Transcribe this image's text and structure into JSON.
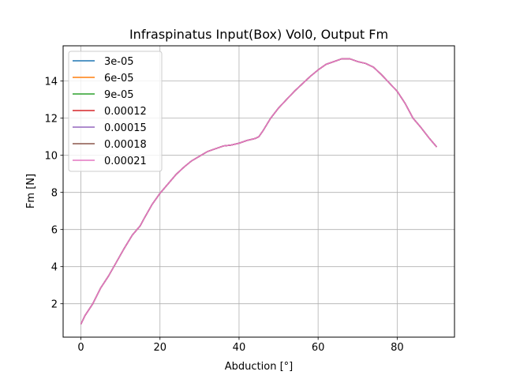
{
  "chart_data": {
    "type": "line",
    "title": "Infraspinatus Input(Box) Vol0, Output Fm",
    "xlabel": "Abduction [°]",
    "ylabel": "Fm [N]",
    "xlim": [
      -4.5,
      94.5
    ],
    "ylim": [
      0.2,
      15.9
    ],
    "xticks": [
      0,
      20,
      40,
      60,
      80
    ],
    "yticks": [
      2,
      4,
      6,
      8,
      10,
      12,
      14
    ],
    "grid": true,
    "legend_position": "upper-left",
    "x": [
      0,
      1,
      3,
      5,
      7,
      9,
      11,
      13,
      15,
      16,
      18,
      20,
      22,
      24,
      26,
      28,
      30,
      32,
      34,
      36,
      38,
      40,
      42,
      44,
      45,
      46,
      48,
      50,
      52,
      54,
      56,
      58,
      60,
      62,
      64,
      66,
      68,
      70,
      72,
      74,
      76,
      78,
      80,
      82,
      84,
      86,
      88,
      90
    ],
    "series": [
      {
        "name": "3e-05",
        "color": "#1f77b4",
        "values": [
          0.9,
          1.35,
          2.0,
          2.85,
          3.5,
          4.25,
          5.0,
          5.7,
          6.2,
          6.6,
          7.35,
          7.95,
          8.45,
          8.95,
          9.35,
          9.7,
          9.95,
          10.2,
          10.35,
          10.5,
          10.55,
          10.65,
          10.8,
          10.9,
          11.0,
          11.3,
          12.0,
          12.55,
          13.0,
          13.45,
          13.85,
          14.25,
          14.6,
          14.9,
          15.05,
          15.2,
          15.2,
          15.05,
          14.95,
          14.75,
          14.35,
          13.9,
          13.45,
          12.8,
          12.0,
          11.5,
          10.95,
          10.45
        ]
      },
      {
        "name": "6e-05",
        "color": "#ff7f0e",
        "values": [
          0.9,
          1.35,
          2.0,
          2.85,
          3.5,
          4.25,
          5.0,
          5.7,
          6.2,
          6.6,
          7.35,
          7.95,
          8.45,
          8.95,
          9.35,
          9.7,
          9.95,
          10.2,
          10.35,
          10.5,
          10.55,
          10.65,
          10.8,
          10.9,
          11.0,
          11.3,
          12.0,
          12.55,
          13.0,
          13.45,
          13.85,
          14.25,
          14.6,
          14.9,
          15.05,
          15.2,
          15.2,
          15.05,
          14.95,
          14.75,
          14.35,
          13.9,
          13.45,
          12.8,
          12.0,
          11.5,
          10.95,
          10.45
        ]
      },
      {
        "name": "9e-05",
        "color": "#2ca02c",
        "values": [
          0.9,
          1.35,
          2.0,
          2.85,
          3.5,
          4.25,
          5.0,
          5.7,
          6.2,
          6.6,
          7.35,
          7.95,
          8.45,
          8.95,
          9.35,
          9.7,
          9.95,
          10.2,
          10.35,
          10.5,
          10.55,
          10.65,
          10.8,
          10.9,
          11.0,
          11.3,
          12.0,
          12.55,
          13.0,
          13.45,
          13.85,
          14.25,
          14.6,
          14.9,
          15.05,
          15.2,
          15.2,
          15.05,
          14.95,
          14.75,
          14.35,
          13.9,
          13.45,
          12.8,
          12.0,
          11.5,
          10.95,
          10.45
        ]
      },
      {
        "name": "0.00012",
        "color": "#d62728",
        "values": [
          0.9,
          1.35,
          2.0,
          2.85,
          3.5,
          4.25,
          5.0,
          5.7,
          6.2,
          6.6,
          7.35,
          7.95,
          8.45,
          8.95,
          9.35,
          9.7,
          9.95,
          10.2,
          10.35,
          10.5,
          10.55,
          10.65,
          10.8,
          10.9,
          11.0,
          11.3,
          12.0,
          12.55,
          13.0,
          13.45,
          13.85,
          14.25,
          14.6,
          14.9,
          15.05,
          15.2,
          15.2,
          15.05,
          14.95,
          14.75,
          14.35,
          13.9,
          13.45,
          12.8,
          12.0,
          11.5,
          10.95,
          10.45
        ]
      },
      {
        "name": "0.00015",
        "color": "#9467bd",
        "values": [
          0.9,
          1.35,
          2.0,
          2.85,
          3.5,
          4.25,
          5.0,
          5.7,
          6.2,
          6.6,
          7.35,
          7.95,
          8.45,
          8.95,
          9.35,
          9.7,
          9.95,
          10.2,
          10.35,
          10.5,
          10.55,
          10.65,
          10.8,
          10.9,
          11.0,
          11.3,
          12.0,
          12.55,
          13.0,
          13.45,
          13.85,
          14.25,
          14.6,
          14.9,
          15.05,
          15.2,
          15.2,
          15.05,
          14.95,
          14.75,
          14.35,
          13.9,
          13.45,
          12.8,
          12.0,
          11.5,
          10.95,
          10.45
        ]
      },
      {
        "name": "0.00018",
        "color": "#8c564b",
        "values": [
          0.9,
          1.35,
          2.0,
          2.85,
          3.5,
          4.25,
          5.0,
          5.7,
          6.2,
          6.6,
          7.35,
          7.95,
          8.45,
          8.95,
          9.35,
          9.7,
          9.95,
          10.2,
          10.35,
          10.5,
          10.55,
          10.65,
          10.8,
          10.9,
          11.0,
          11.3,
          12.0,
          12.55,
          13.0,
          13.45,
          13.85,
          14.25,
          14.6,
          14.9,
          15.05,
          15.2,
          15.2,
          15.05,
          14.95,
          14.75,
          14.35,
          13.9,
          13.45,
          12.8,
          12.0,
          11.5,
          10.95,
          10.45
        ]
      },
      {
        "name": "0.00021",
        "color": "#e377c2",
        "values": [
          0.9,
          1.35,
          2.0,
          2.85,
          3.5,
          4.25,
          5.0,
          5.7,
          6.2,
          6.6,
          7.35,
          7.95,
          8.45,
          8.95,
          9.35,
          9.7,
          9.95,
          10.2,
          10.35,
          10.5,
          10.55,
          10.65,
          10.8,
          10.9,
          11.0,
          11.3,
          12.0,
          12.55,
          13.0,
          13.45,
          13.85,
          14.25,
          14.6,
          14.9,
          15.05,
          15.2,
          15.2,
          15.05,
          14.95,
          14.75,
          14.35,
          13.9,
          13.45,
          12.8,
          12.0,
          11.5,
          10.95,
          10.45
        ]
      }
    ]
  }
}
